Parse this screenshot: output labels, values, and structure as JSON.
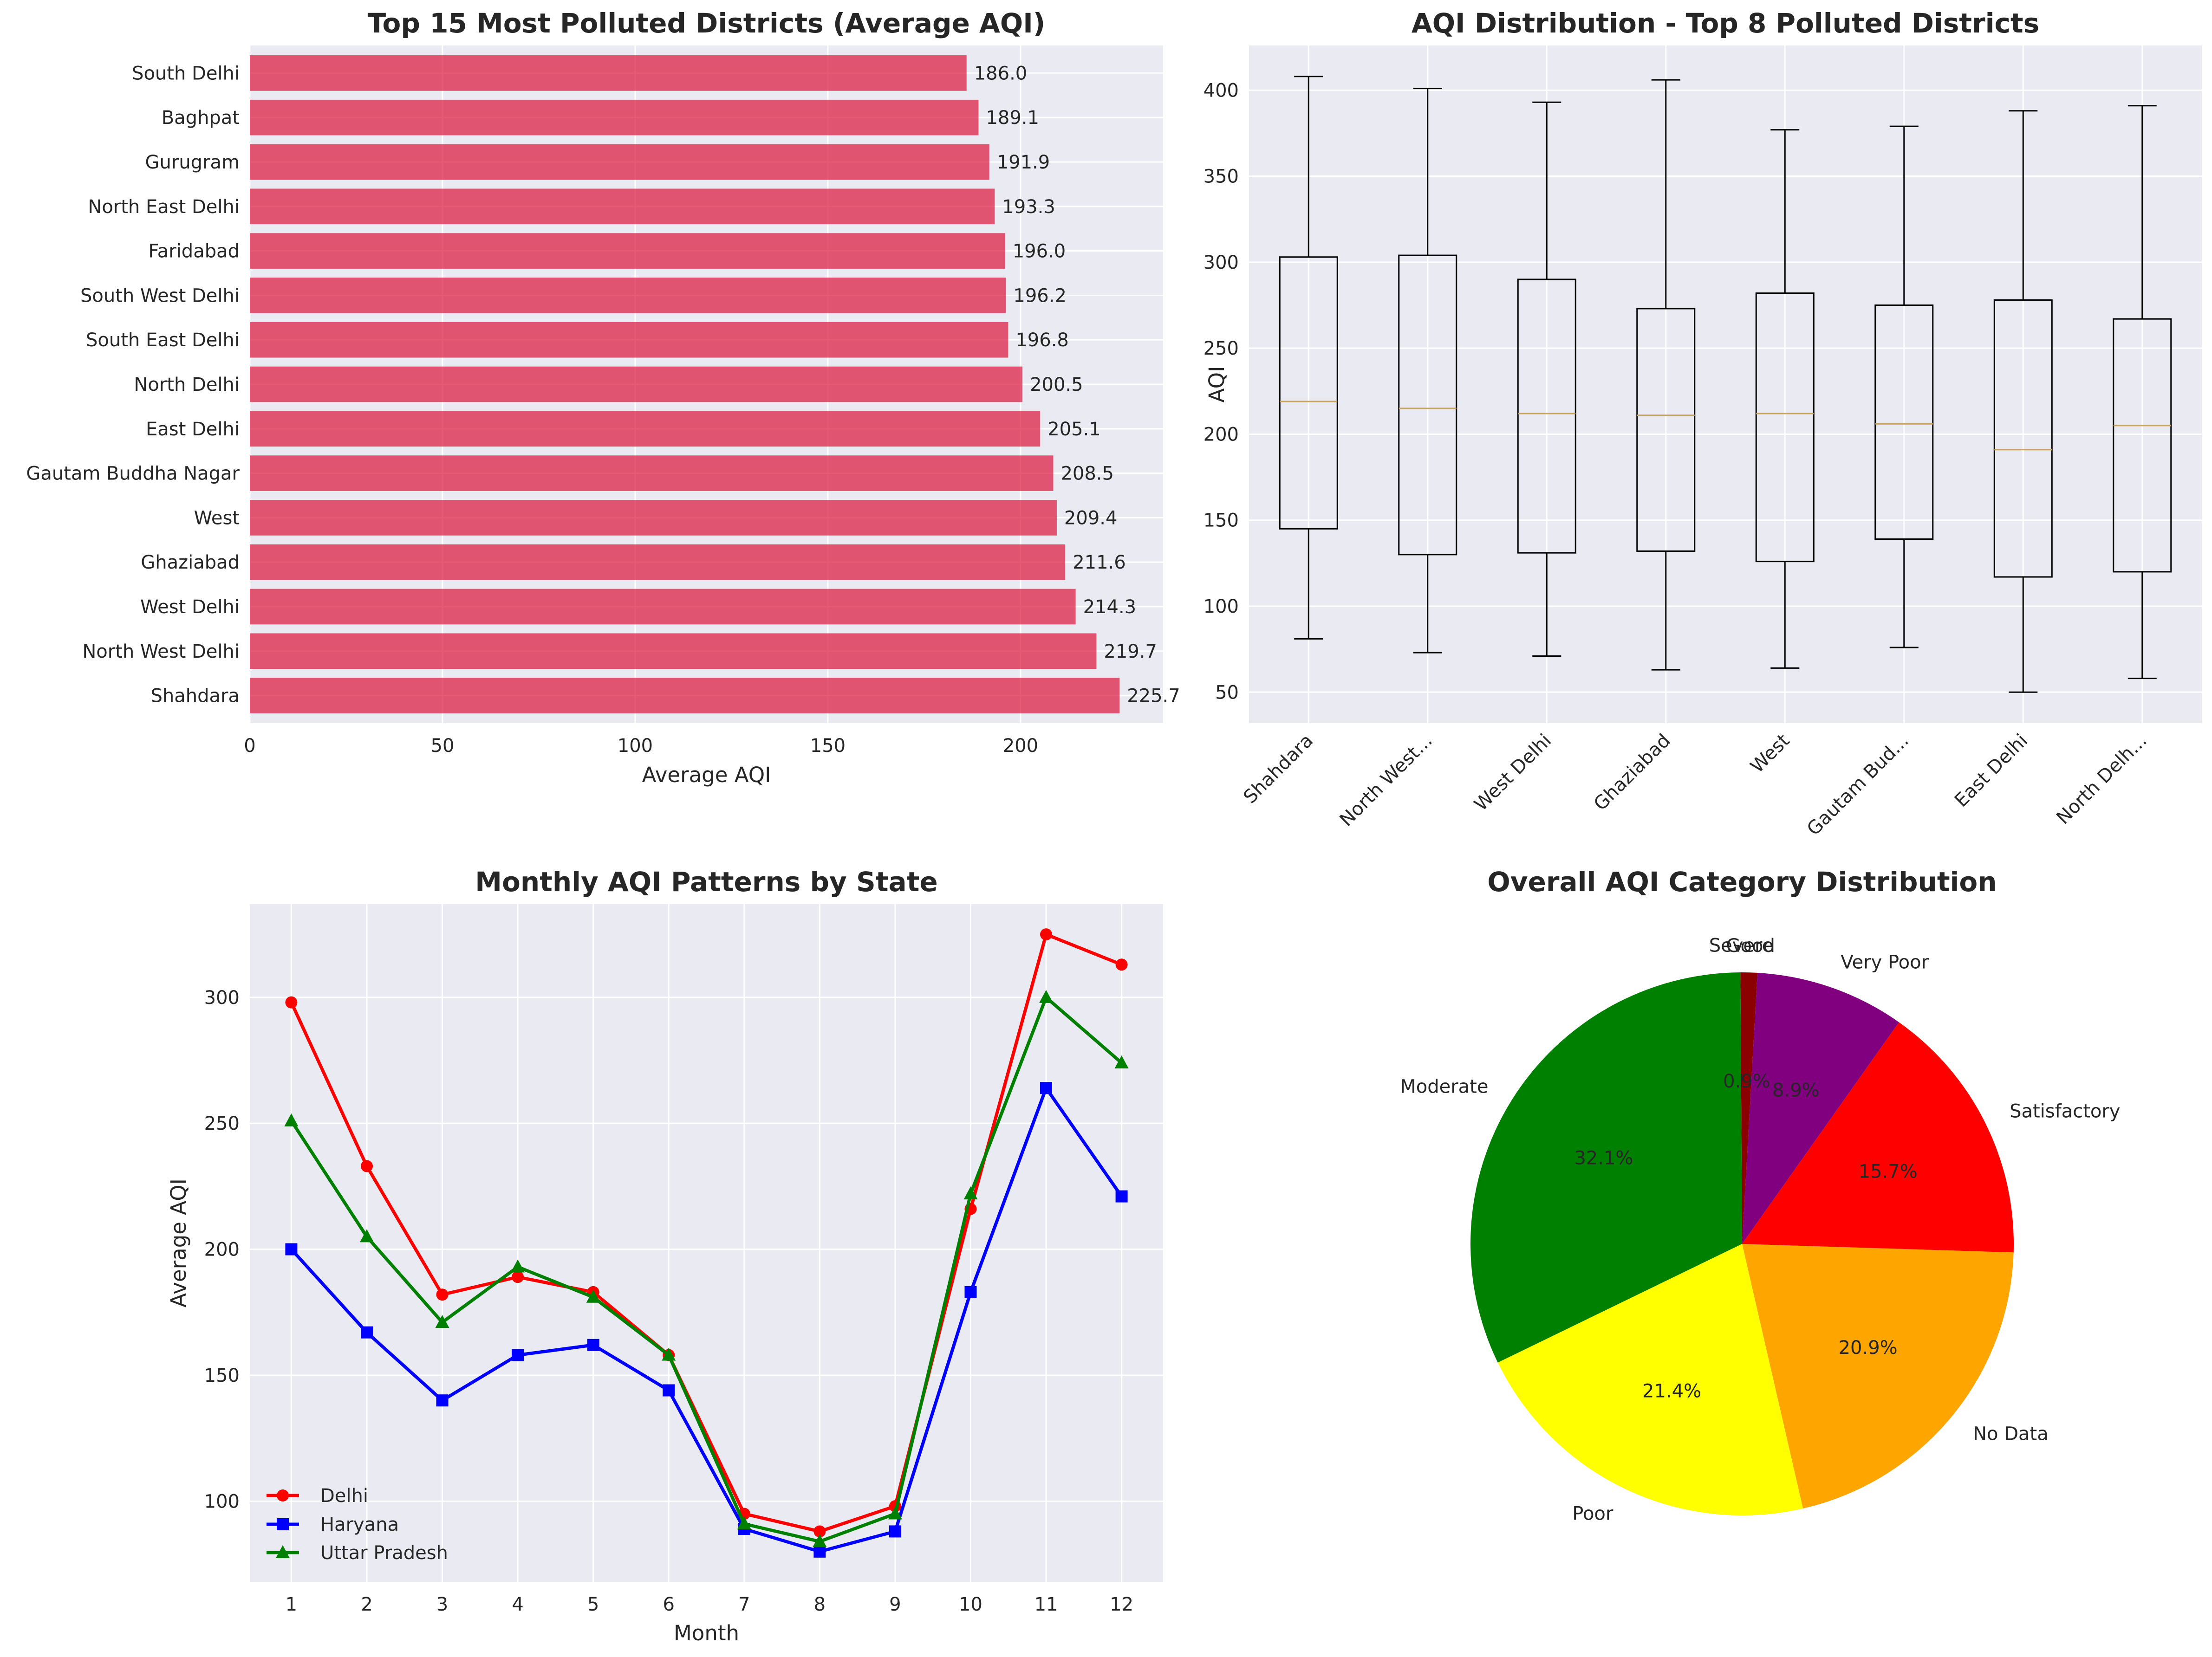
{
  "colors": {
    "panel_bg": "#EAEAF2",
    "grid": "#FFFFFF",
    "bar": "#DC143C",
    "box": "#000000",
    "median": "#C8A45E",
    "delhi": "#FF0000",
    "haryana": "#0000FF",
    "up": "#008000"
  },
  "chart_data": [
    {
      "type": "bar",
      "orientation": "horizontal",
      "title": "Top 15 Most Polluted Districts (Average AQI)",
      "xlabel": "Average AQI",
      "ylabel": "",
      "categories": [
        "Shahdara",
        "North West Delhi",
        "West Delhi",
        "Ghaziabad",
        "West",
        "Gautam Buddha Nagar",
        "East Delhi",
        "North Delhi",
        "South East Delhi",
        "South West Delhi",
        "Faridabad",
        "North East Delhi",
        "Gurugram",
        "Baghpat",
        "South Delhi"
      ],
      "values": [
        225.7,
        219.7,
        214.3,
        211.6,
        209.4,
        208.5,
        205.1,
        200.5,
        196.8,
        196.2,
        196.0,
        193.3,
        191.9,
        189.1,
        186.0
      ],
      "value_labels": [
        "225.7",
        "219.7",
        "214.3",
        "211.6",
        "209.4",
        "208.5",
        "205.1",
        "200.5",
        "196.8",
        "196.2",
        "196.0",
        "193.3",
        "191.9",
        "189.1",
        "186.0"
      ],
      "xlim": [
        0,
        237
      ],
      "xticks": [
        0,
        50,
        100,
        150,
        200
      ],
      "xtick_labels": [
        "0",
        "50",
        "100",
        "150",
        "200"
      ],
      "grid": true
    },
    {
      "type": "box",
      "title": "AQI Distribution - Top 8 Polluted Districts",
      "xlabel": "",
      "ylabel": "AQI",
      "categories": [
        "Shahdara",
        "North West...",
        "West Delhi",
        "Ghaziabad",
        "West",
        "Gautam Bud...",
        "East Delhi",
        "North Delh..."
      ],
      "boxes": [
        {
          "whisker_low": 81,
          "q1": 145,
          "median": 219,
          "q3": 303,
          "whisker_high": 408
        },
        {
          "whisker_low": 73,
          "q1": 130,
          "median": 215,
          "q3": 304,
          "whisker_high": 401
        },
        {
          "whisker_low": 71,
          "q1": 131,
          "median": 212,
          "q3": 290,
          "whisker_high": 393
        },
        {
          "whisker_low": 63,
          "q1": 132,
          "median": 211,
          "q3": 273,
          "whisker_high": 406
        },
        {
          "whisker_low": 64,
          "q1": 126,
          "median": 212,
          "q3": 282,
          "whisker_high": 377
        },
        {
          "whisker_low": 76,
          "q1": 139,
          "median": 206,
          "q3": 275,
          "whisker_high": 379
        },
        {
          "whisker_low": 50,
          "q1": 117,
          "median": 191,
          "q3": 278,
          "whisker_high": 388
        },
        {
          "whisker_low": 58,
          "q1": 120,
          "median": 205,
          "q3": 267,
          "whisker_high": 391
        }
      ],
      "ylim": [
        32,
        426
      ],
      "yticks": [
        50,
        100,
        150,
        200,
        250,
        300,
        350,
        400
      ],
      "ytick_labels": [
        "50",
        "100",
        "150",
        "200",
        "250",
        "300",
        "350",
        "400"
      ],
      "grid": true
    },
    {
      "type": "line",
      "title": "Monthly AQI Patterns by State",
      "xlabel": "Month",
      "ylabel": "Average AQI",
      "x": [
        1,
        2,
        3,
        4,
        5,
        6,
        7,
        8,
        9,
        10,
        11,
        12
      ],
      "xtick_labels": [
        "1",
        "2",
        "3",
        "4",
        "5",
        "6",
        "7",
        "8",
        "9",
        "10",
        "11",
        "12"
      ],
      "series": [
        {
          "name": "Delhi",
          "marker": "circle",
          "values": [
            298,
            233,
            182,
            189,
            183,
            158,
            95,
            88,
            98,
            216,
            325,
            313
          ]
        },
        {
          "name": "Haryana",
          "marker": "square",
          "values": [
            200,
            167,
            140,
            158,
            162,
            144,
            89,
            80,
            88,
            183,
            264,
            221
          ]
        },
        {
          "name": "Uttar Pradesh",
          "marker": "triangle",
          "values": [
            251,
            205,
            171,
            193,
            181,
            158,
            91,
            84,
            95,
            222,
            300,
            274
          ]
        }
      ],
      "xlim": [
        0.45,
        12.55
      ],
      "ylim": [
        68,
        337
      ],
      "yticks": [
        100,
        150,
        200,
        250,
        300
      ],
      "ytick_labels": [
        "100",
        "150",
        "200",
        "250",
        "300"
      ],
      "legend": "lower-left",
      "grid": true
    },
    {
      "type": "pie",
      "title": "Overall AQI Category Distribution",
      "start_angle": 90,
      "direction": "counterclockwise",
      "slices": [
        {
          "label": "Severe",
          "pct_label": "0.1%",
          "value": 0.1,
          "color": "#8B0000"
        },
        {
          "label": "Moderate",
          "pct_label": "32.1%",
          "value": 32.1,
          "color": "#008000"
        },
        {
          "label": "Poor",
          "pct_label": "21.4%",
          "value": 21.4,
          "color": "#FFFF00"
        },
        {
          "label": "No Data",
          "pct_label": "20.9%",
          "value": 20.9,
          "color": "#FFA500"
        },
        {
          "label": "Satisfactory",
          "pct_label": "15.7%",
          "value": 15.7,
          "color": "#FF0000"
        },
        {
          "label": "Very Poor",
          "pct_label": "8.9%",
          "value": 8.9,
          "color": "#800080"
        },
        {
          "label": "Good",
          "pct_label": "0.9%",
          "value": 0.9,
          "color": "#8B0000"
        }
      ]
    }
  ]
}
